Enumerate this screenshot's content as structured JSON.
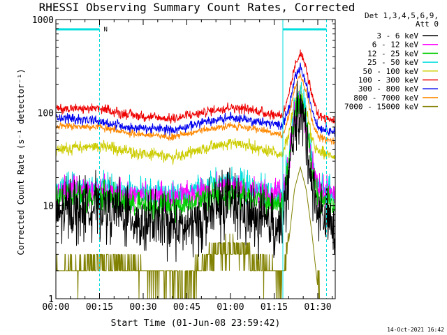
{
  "chart_data": {
    "type": "line",
    "title": "RHESSI Observing Summary Count Rates, Corrected",
    "xlabel": "Start Time (01-Jun-08 23:59:42)",
    "ylabel": "Corrected Count Rate (s⁻¹ detector⁻¹)",
    "y_scale": "log",
    "ylim": [
      1,
      1000
    ],
    "xlim_minutes": [
      0,
      96
    ],
    "x_tick_minutes": [
      0,
      15,
      30,
      45,
      60,
      75,
      90
    ],
    "x_tick_labels": [
      "00:00",
      "00:15",
      "00:30",
      "00:45",
      "01:00",
      "01:15",
      "01:30"
    ],
    "y_tick_values": [
      1,
      10,
      100,
      1000
    ],
    "y_tick_labels": [
      "1",
      "10",
      "100",
      "1000"
    ],
    "legend": {
      "placement": "top-right, outside plot",
      "header": [
        "Det 1,3,4,5,6,9,",
        "Att 0"
      ]
    },
    "bars": {
      "intervals_minutes": [
        [
          0,
          15
        ],
        [
          78,
          93
        ]
      ],
      "label": "N",
      "color": "#00dddd"
    },
    "vertical_markers_minutes": [
      {
        "t": 0,
        "style": "solid"
      },
      {
        "t": 15,
        "style": "dashed"
      },
      {
        "t": 78,
        "style": "solid"
      },
      {
        "t": 93,
        "style": "dashed"
      }
    ],
    "series": [
      {
        "name": "3 - 6 keV",
        "color": "#000000",
        "noise": 0.25,
        "points": [
          [
            0,
            8
          ],
          [
            10,
            9.5
          ],
          [
            15,
            10
          ],
          [
            20,
            9
          ],
          [
            30,
            6.5
          ],
          [
            45,
            5.8
          ],
          [
            55,
            9
          ],
          [
            60,
            11
          ],
          [
            65,
            8.5
          ],
          [
            70,
            6.5
          ],
          [
            75,
            6.2
          ],
          [
            78,
            6.0
          ],
          [
            80,
            20
          ],
          [
            82,
            70
          ],
          [
            84,
            115
          ],
          [
            86,
            60
          ],
          [
            88,
            18
          ],
          [
            90,
            9
          ],
          [
            96,
            5.5
          ]
        ]
      },
      {
        "name": "6 - 12 keV",
        "color": "#ff00ff",
        "noise": 0.12,
        "points": [
          [
            0,
            14
          ],
          [
            15,
            15
          ],
          [
            25,
            13
          ],
          [
            40,
            12
          ],
          [
            50,
            14
          ],
          [
            60,
            16
          ],
          [
            65,
            15
          ],
          [
            75,
            13
          ],
          [
            78,
            12.5
          ],
          [
            80,
            30
          ],
          [
            82,
            90
          ],
          [
            84,
            135
          ],
          [
            86,
            80
          ],
          [
            88,
            28
          ],
          [
            90,
            15
          ],
          [
            96,
            13
          ]
        ]
      },
      {
        "name": "12 - 25 keV",
        "color": "#00cc00",
        "noise": 0.12,
        "points": [
          [
            0,
            12
          ],
          [
            15,
            13
          ],
          [
            25,
            10.5
          ],
          [
            40,
            9.5
          ],
          [
            50,
            12
          ],
          [
            60,
            14
          ],
          [
            65,
            13
          ],
          [
            75,
            10.5
          ],
          [
            78,
            10
          ],
          [
            80,
            28
          ],
          [
            82,
            95
          ],
          [
            84,
            140
          ],
          [
            86,
            85
          ],
          [
            88,
            25
          ],
          [
            90,
            12
          ],
          [
            96,
            9.5
          ]
        ]
      },
      {
        "name": "25 - 50 keV",
        "color": "#00dddd",
        "noise": 0.12,
        "points": [
          [
            0,
            15
          ],
          [
            15,
            16
          ],
          [
            25,
            14
          ],
          [
            40,
            13
          ],
          [
            50,
            16
          ],
          [
            60,
            18
          ],
          [
            65,
            16
          ],
          [
            75,
            14
          ],
          [
            78,
            14
          ],
          [
            80,
            35
          ],
          [
            82,
            110
          ],
          [
            84,
            155
          ],
          [
            86,
            95
          ],
          [
            88,
            30
          ],
          [
            90,
            16
          ],
          [
            96,
            14
          ]
        ]
      },
      {
        "name": "50 - 100 keV",
        "color": "#cccc00",
        "noise": 0.05,
        "points": [
          [
            0,
            40
          ],
          [
            15,
            44
          ],
          [
            25,
            38
          ],
          [
            40,
            33
          ],
          [
            50,
            40
          ],
          [
            60,
            48
          ],
          [
            65,
            45
          ],
          [
            75,
            37
          ],
          [
            78,
            36
          ],
          [
            80,
            60
          ],
          [
            82,
            130
          ],
          [
            84,
            170
          ],
          [
            86,
            110
          ],
          [
            88,
            50
          ],
          [
            90,
            38
          ],
          [
            96,
            34
          ]
        ]
      },
      {
        "name": "100 - 300 keV",
        "color": "#ee0000",
        "noise": 0.04,
        "points": [
          [
            0,
            110
          ],
          [
            15,
            110
          ],
          [
            25,
            95
          ],
          [
            40,
            85
          ],
          [
            50,
            100
          ],
          [
            60,
            115
          ],
          [
            65,
            110
          ],
          [
            75,
            95
          ],
          [
            78,
            95
          ],
          [
            80,
            150
          ],
          [
            82,
            300
          ],
          [
            84,
            450
          ],
          [
            86,
            300
          ],
          [
            88,
            150
          ],
          [
            90,
            95
          ],
          [
            96,
            80
          ]
        ]
      },
      {
        "name": "300 - 800 keV",
        "color": "#0000ee",
        "noise": 0.04,
        "points": [
          [
            0,
            90
          ],
          [
            15,
            80
          ],
          [
            25,
            70
          ],
          [
            40,
            65
          ],
          [
            50,
            78
          ],
          [
            60,
            88
          ],
          [
            65,
            85
          ],
          [
            75,
            75
          ],
          [
            78,
            75
          ],
          [
            80,
            110
          ],
          [
            82,
            220
          ],
          [
            84,
            310
          ],
          [
            86,
            200
          ],
          [
            88,
            110
          ],
          [
            90,
            70
          ],
          [
            96,
            62
          ]
        ]
      },
      {
        "name": "800 - 7000 keV",
        "color": "#ff8800",
        "noise": 0.03,
        "points": [
          [
            0,
            70
          ],
          [
            15,
            70
          ],
          [
            25,
            60
          ],
          [
            40,
            55
          ],
          [
            50,
            65
          ],
          [
            60,
            72
          ],
          [
            65,
            70
          ],
          [
            75,
            60
          ],
          [
            78,
            58
          ],
          [
            80,
            90
          ],
          [
            82,
            180
          ],
          [
            84,
            260
          ],
          [
            86,
            170
          ],
          [
            88,
            85
          ],
          [
            90,
            55
          ],
          [
            96,
            48
          ]
        ]
      },
      {
        "name": "7000 - 15000 keV",
        "color": "#808000",
        "noise": 0,
        "points": [
          [
            0,
            1.8
          ],
          [
            15,
            2.2
          ],
          [
            20,
            2.4
          ],
          [
            30,
            1.8
          ],
          [
            45,
            1.5
          ],
          [
            55,
            3.0
          ],
          [
            60,
            3.5
          ],
          [
            65,
            3.0
          ],
          [
            70,
            2.0
          ],
          [
            75,
            1.8
          ],
          [
            78,
            1.5
          ],
          [
            80,
            4
          ],
          [
            82,
            15
          ],
          [
            84,
            26
          ],
          [
            86,
            15
          ],
          [
            88,
            5
          ],
          [
            90,
            1.3
          ],
          [
            92,
            1
          ],
          [
            96,
            1
          ]
        ]
      }
    ]
  },
  "footer": {
    "timestamp": "14-Oct-2021 16:42"
  }
}
